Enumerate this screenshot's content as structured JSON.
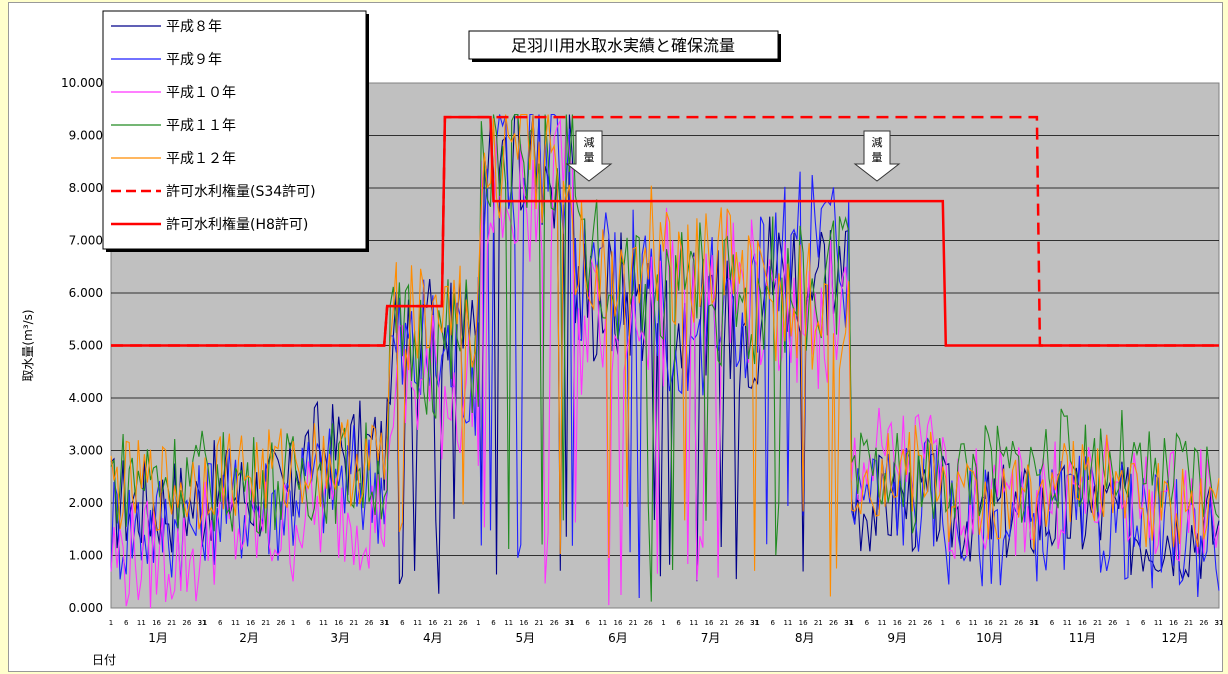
{
  "chart_data": {
    "type": "line",
    "title": "足羽川用水取水実績と確保流量",
    "ylabel": "取水量(m³/s)",
    "xlabel": "日付",
    "ylim": [
      0,
      10
    ],
    "yticks": [
      "10.000",
      "9.000",
      "8.000",
      "7.000",
      "6.000",
      "5.000",
      "4.000",
      "3.000",
      "2.000",
      "1.000",
      "0.000"
    ],
    "months": [
      "1月",
      "2月",
      "3月",
      "4月",
      "5月",
      "6月",
      "7月",
      "8月",
      "9月",
      "10月",
      "11月",
      "12月"
    ],
    "day_tick_labels": [
      "1",
      "6",
      "11",
      "16",
      "21",
      "26",
      "31"
    ],
    "legend_placement": "top-left",
    "annotations": [
      "減量",
      "減量"
    ],
    "grid": true,
    "series": [
      {
        "name": "平成８年",
        "color": "#00008b",
        "style": "solid",
        "profile": [
          2.0,
          2.2,
          3.0,
          5.2,
          8.6,
          6.0,
          5.5,
          6.5,
          2.0,
          1.8,
          1.8,
          1.5
        ],
        "noise": 1.0
      },
      {
        "name": "平成９年",
        "color": "#1f1fff",
        "style": "solid",
        "profile": [
          1.6,
          2.0,
          2.4,
          4.8,
          8.4,
          6.2,
          5.6,
          6.8,
          2.2,
          1.6,
          1.7,
          1.4
        ],
        "noise": 1.2
      },
      {
        "name": "平成１０年",
        "color": "#ff33ff",
        "style": "solid",
        "profile": [
          1.0,
          1.5,
          1.8,
          4.2,
          8.0,
          5.5,
          6.2,
          5.5,
          2.8,
          2.0,
          2.2,
          2.0
        ],
        "noise": 1.1
      },
      {
        "name": "平成１１年",
        "color": "#228b22",
        "style": "solid",
        "profile": [
          2.5,
          2.4,
          2.6,
          5.0,
          8.8,
          6.5,
          6.0,
          6.2,
          2.4,
          2.6,
          2.8,
          2.4
        ],
        "noise": 1.0
      },
      {
        "name": "平成１２年",
        "color": "#ff8c00",
        "style": "solid",
        "profile": [
          2.3,
          2.6,
          2.8,
          5.4,
          8.5,
          6.8,
          6.4,
          5.8,
          2.6,
          2.0,
          2.4,
          2.0
        ],
        "noise": 0.9
      },
      {
        "name": "許可水利権量(S34許可)",
        "color": "#ff0000",
        "style": "dashed",
        "x": [
          1,
          91,
          92,
          110,
          111,
          306,
          307,
          366
        ],
        "values": [
          5.0,
          5.0,
          5.75,
          5.75,
          9.35,
          9.35,
          5.0,
          5.0
        ]
      },
      {
        "name": "許可水利権量(H8許可)",
        "color": "#ff0000",
        "style": "solid",
        "x": [
          1,
          91,
          92,
          110,
          111,
          126,
          127,
          275,
          276,
          366
        ],
        "values": [
          5.0,
          5.0,
          5.75,
          5.75,
          9.35,
          9.35,
          7.75,
          7.75,
          5.0,
          5.0
        ]
      }
    ]
  }
}
